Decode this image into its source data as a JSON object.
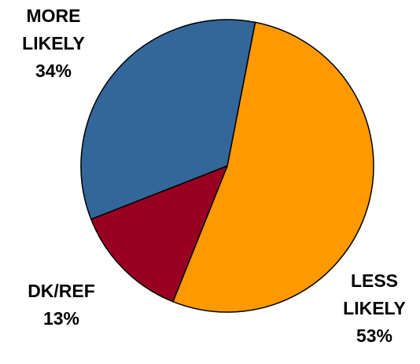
{
  "chart_data": {
    "type": "pie",
    "start_angle_deg": 11,
    "slices": [
      {
        "label_lines": [
          "LESS",
          "LIKELY"
        ],
        "value_label": "53%",
        "value": 53,
        "color": "#FF9900"
      },
      {
        "label_lines": [
          "DK/REF"
        ],
        "value_label": "13%",
        "value": 13,
        "color": "#990022"
      },
      {
        "label_lines": [
          "MORE",
          "LIKELY"
        ],
        "value_label": "34%",
        "value": 34,
        "color": "#336699"
      }
    ]
  }
}
